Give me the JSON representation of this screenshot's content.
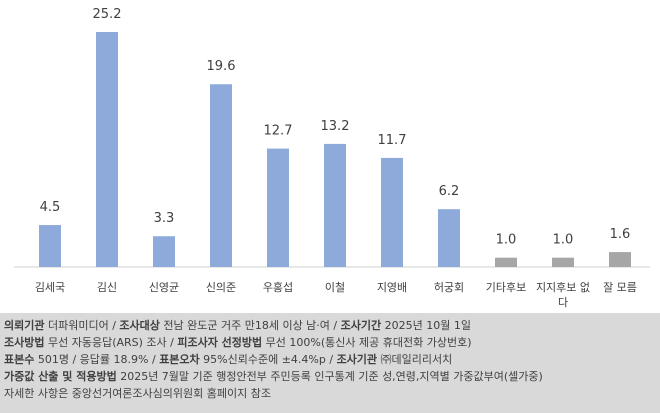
{
  "chart_data": {
    "type": "bar",
    "categories": [
      "김세국",
      "김신",
      "신영균",
      "신의준",
      "우홍섭",
      "이철",
      "지영배",
      "허궁회",
      "기타후보",
      "지지후보 없다",
      "잘 모름"
    ],
    "values": [
      4.5,
      25.2,
      3.3,
      19.6,
      12.7,
      13.2,
      11.7,
      6.2,
      1.0,
      1.0,
      1.6
    ],
    "value_labels": [
      "4.5",
      "25.2",
      "3.3",
      "19.6",
      "12.7",
      "13.2",
      "11.7",
      "6.2",
      "1.0",
      "1.0",
      "1.6"
    ],
    "colors": [
      "#8eaadb",
      "#8eaadb",
      "#8eaadb",
      "#8eaadb",
      "#8eaadb",
      "#8eaadb",
      "#8eaadb",
      "#8eaadb",
      "#a6a6a6",
      "#a6a6a6",
      "#a6a6a6"
    ]
  },
  "footer": {
    "lines": [
      [
        {
          "text": "의뢰기관",
          "bold": true
        },
        {
          "text": " 더파워미디어 / ",
          "bold": false
        },
        {
          "text": "조사대상",
          "bold": true
        },
        {
          "text": " 전남 완도군 거주 만18세 이상 남·여 / ",
          "bold": false
        },
        {
          "text": "조사기간",
          "bold": true
        },
        {
          "text": " 2025년 10월 1일",
          "bold": false
        }
      ],
      [
        {
          "text": "조사방법",
          "bold": true
        },
        {
          "text": " 무선 자동응답(ARS) 조사 / ",
          "bold": false
        },
        {
          "text": "피조사자 선정방법",
          "bold": true
        },
        {
          "text": " 무선 100%(통신사 제공 휴대전화 가상번호)",
          "bold": false
        }
      ],
      [
        {
          "text": "표본수",
          "bold": true
        },
        {
          "text": " 501명 / 응답률 18.9% / ",
          "bold": false
        },
        {
          "text": "표본오차",
          "bold": true
        },
        {
          "text": " 95%신뢰수준에 ±4.4%p / ",
          "bold": false
        },
        {
          "text": "조사기관",
          "bold": true
        },
        {
          "text": " ㈜데일리리서치",
          "bold": false
        }
      ],
      [
        {
          "text": "가중값 산출 및 적용방법",
          "bold": true
        },
        {
          "text": " 2025년 7월말 기준 행정안전부 주민등록 인구통계 기준 성,연령,지역별 가중값부여(셀가중)",
          "bold": false
        }
      ],
      [
        {
          "text": "자세한 사항은 중앙선거여론조사심의위원회 홈페이지 참조",
          "bold": false
        }
      ]
    ]
  }
}
